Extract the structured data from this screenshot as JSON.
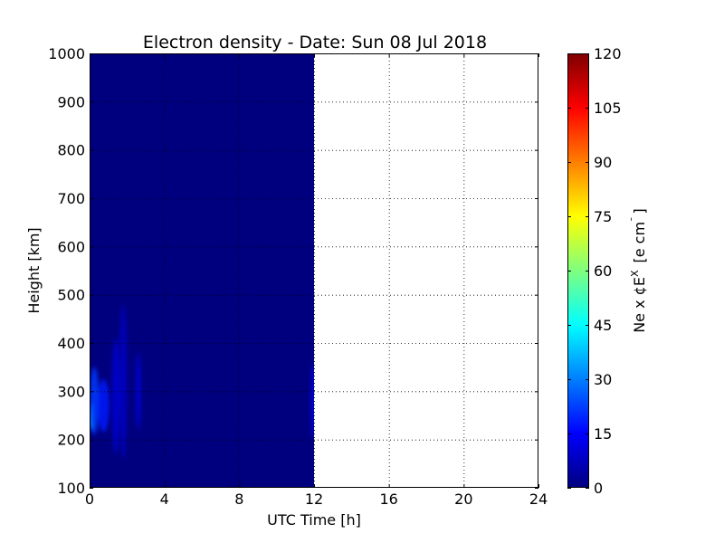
{
  "chart_data": {
    "type": "heatmap",
    "title": "Electron density - Date: Sun 08 Jul 2018",
    "xlabel": "UTC Time [h]",
    "ylabel": "Height [km]",
    "xlim": [
      0,
      24
    ],
    "ylim": [
      100,
      1000
    ],
    "xticks": [
      0,
      4,
      8,
      12,
      16,
      20,
      24
    ],
    "yticks": [
      100,
      200,
      300,
      400,
      500,
      600,
      700,
      800,
      900,
      1000
    ],
    "grid": true,
    "data_coverage": {
      "x_start": 0,
      "x_end": 12
    },
    "background_value": 0,
    "features": [
      {
        "x": 0.1,
        "y": 250,
        "value": 35,
        "x_spread": 0.15,
        "y_spread": 30
      },
      {
        "x": 0.25,
        "y": 280,
        "value": 22,
        "x_spread": 0.25,
        "y_spread": 70
      },
      {
        "x": 0.75,
        "y": 270,
        "value": 18,
        "x_spread": 0.3,
        "y_spread": 55
      },
      {
        "x": 1.4,
        "y": 290,
        "value": 10,
        "x_spread": 0.2,
        "y_spread": 120
      },
      {
        "x": 1.8,
        "y": 320,
        "value": 8,
        "x_spread": 0.2,
        "y_spread": 160
      },
      {
        "x": 2.6,
        "y": 300,
        "value": 10,
        "x_spread": 0.15,
        "y_spread": 80
      },
      {
        "x": 11.95,
        "y": 280,
        "value": 14,
        "x_spread": 0.1,
        "y_spread": 80
      }
    ],
    "colorbar": {
      "label": "Ne x ¢E",
      "label_superscript": "X",
      "label_unit": "[e cm",
      "label_unit_superscript": "¯",
      "label_close": "]",
      "ticks": [
        0,
        15,
        30,
        45,
        60,
        75,
        90,
        105,
        120
      ],
      "range": [
        0,
        120
      ],
      "colormap": "jet",
      "colors": [
        "#00007f",
        "#0000ff",
        "#007fff",
        "#00ffff",
        "#7fff7f",
        "#ffff00",
        "#ff7f00",
        "#ff0000",
        "#7f0000"
      ]
    }
  }
}
